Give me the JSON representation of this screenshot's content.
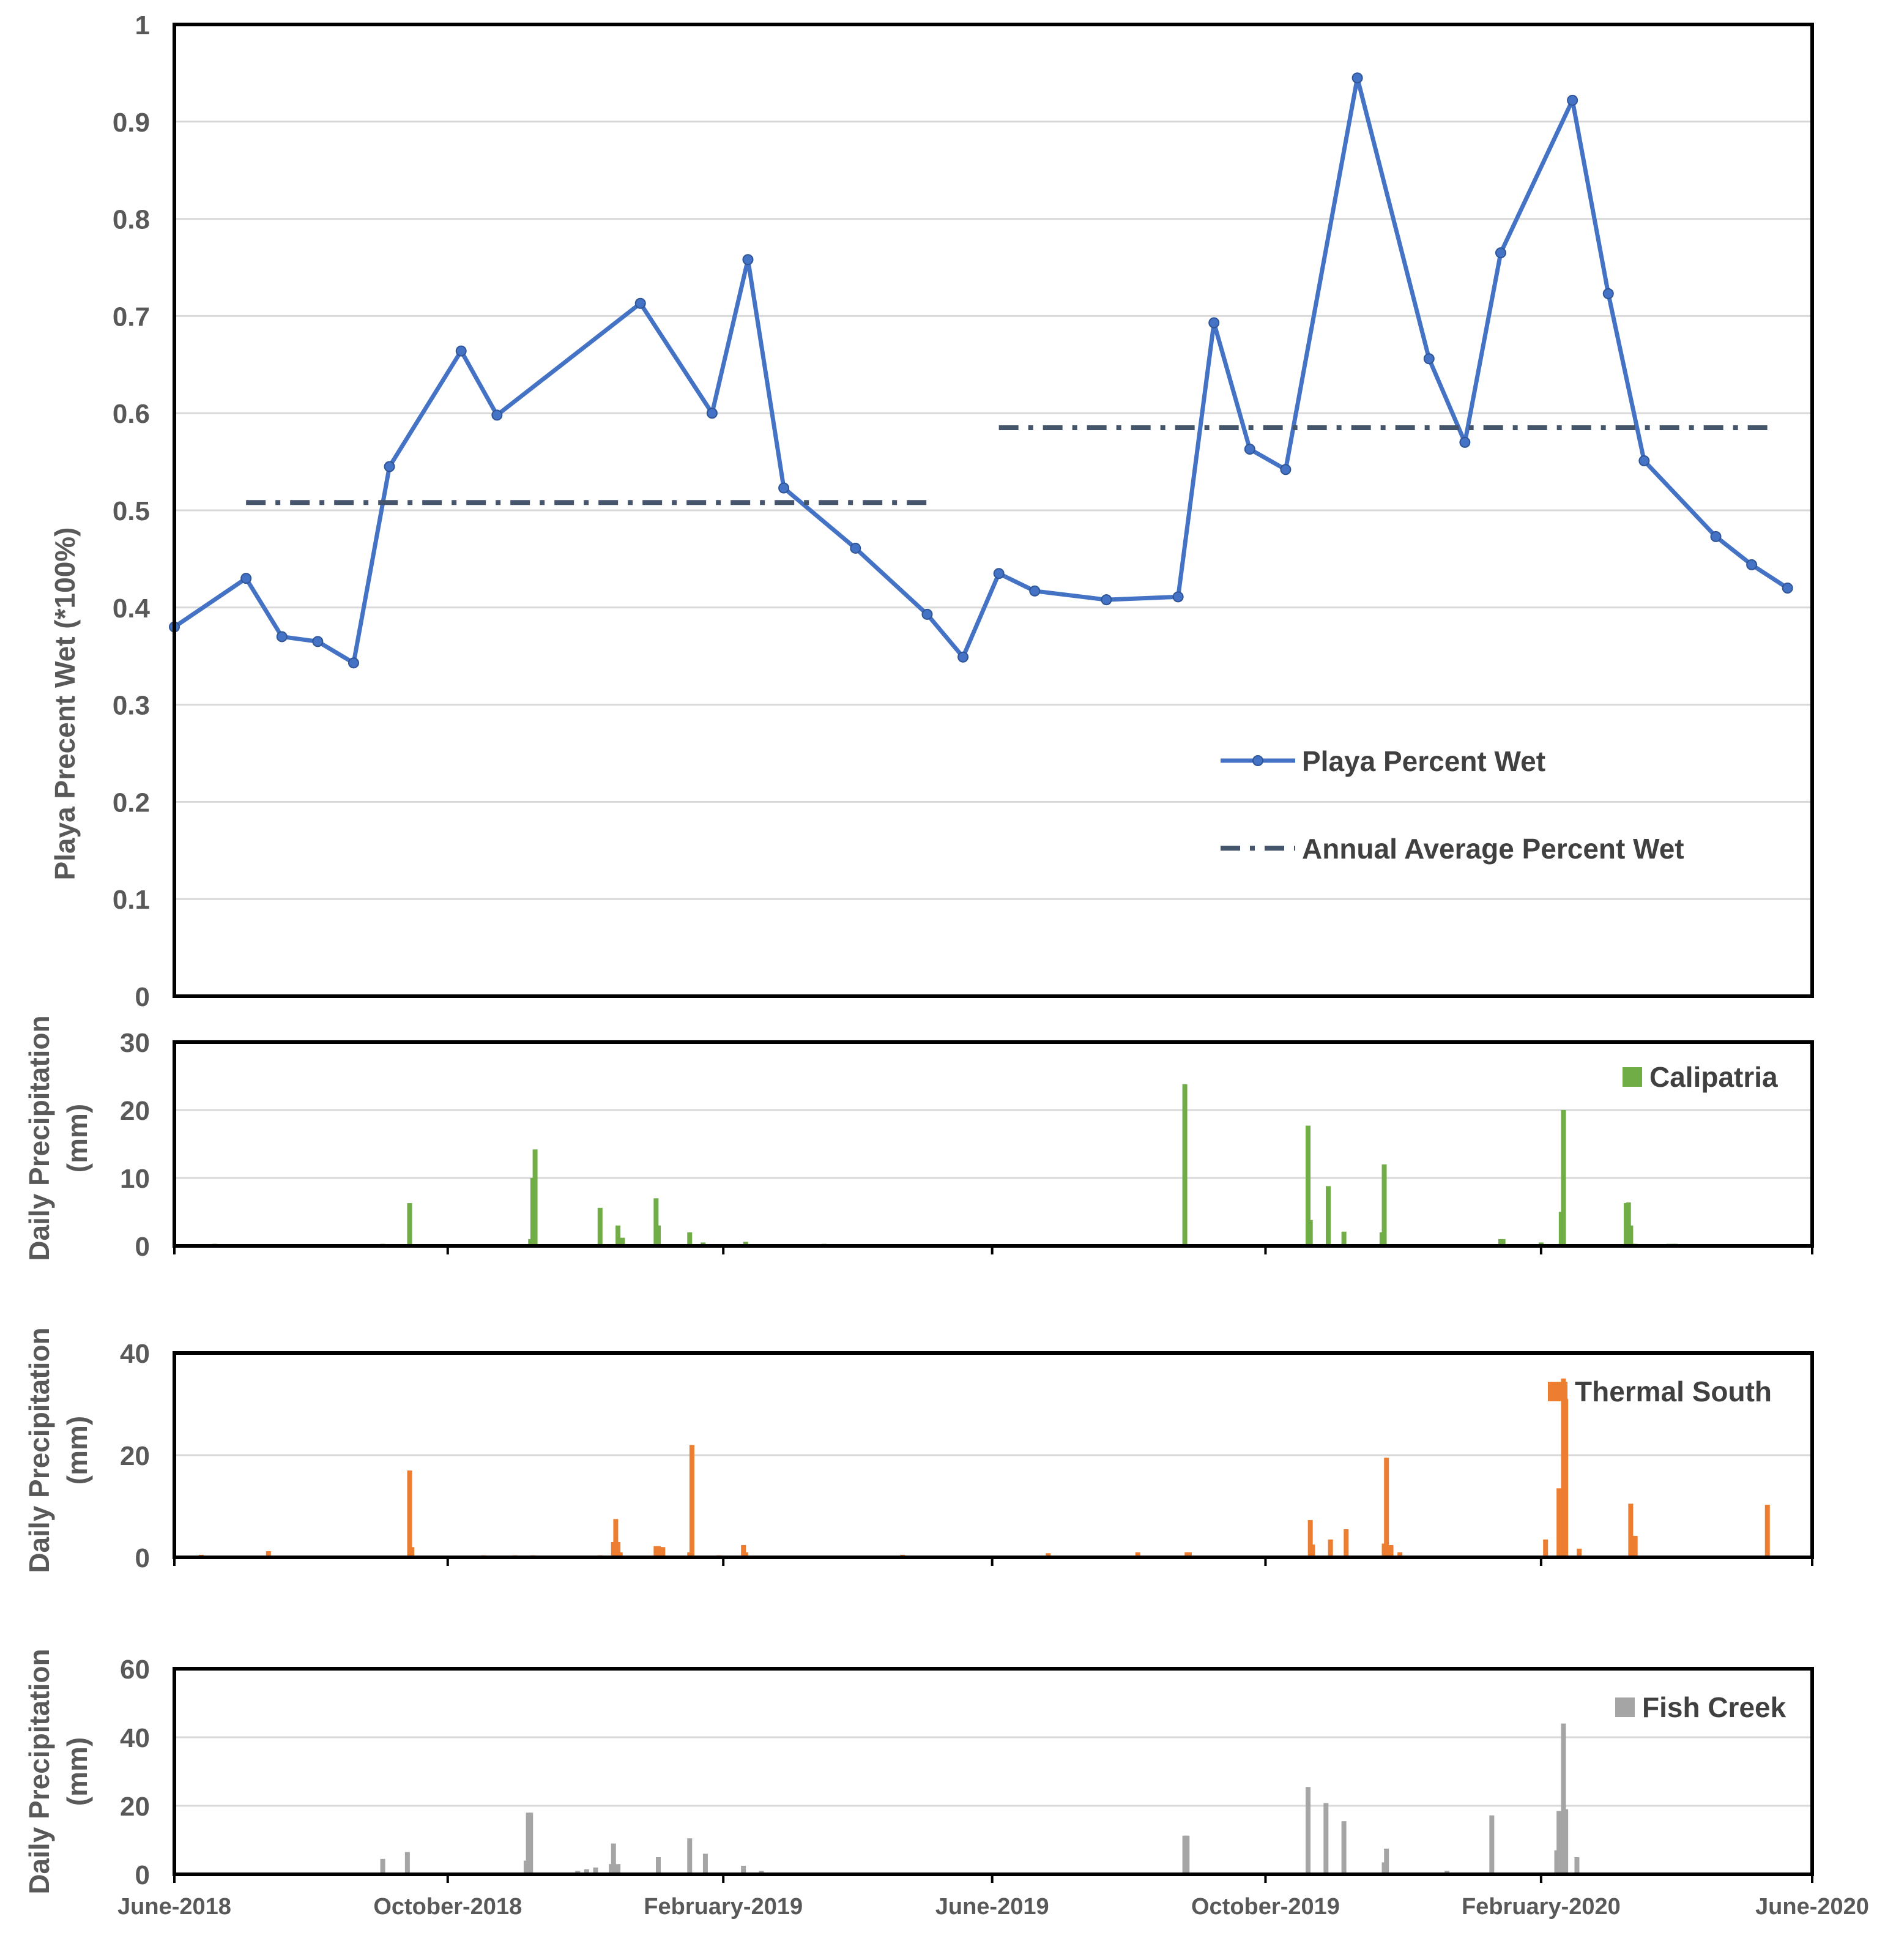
{
  "chart_data": [
    {
      "id": "wet",
      "type": "line",
      "ylabel": "Playa Precent Wet (*100%)",
      "ylim": [
        0,
        1
      ],
      "yticks": [
        0,
        0.1,
        0.2,
        0.3,
        0.4,
        0.5,
        0.6,
        0.7,
        0.8,
        0.9,
        1
      ],
      "ytick_labels": [
        "0",
        "0.1",
        "0.2",
        "0.3",
        "0.4",
        "0.5",
        "0.6",
        "0.7",
        "0.8",
        "0.9",
        "1"
      ],
      "x_unit": "days since June 1, 2018",
      "xlim": [
        0,
        731
      ],
      "grid": true,
      "legend_position": "lower-right",
      "series": [
        {
          "name": "Playa Percent Wet",
          "color": "#4472C4",
          "marker": "circle",
          "x": [
            0,
            32,
            48,
            64,
            80,
            96,
            128,
            144,
            208,
            240,
            256,
            272,
            304,
            336,
            352,
            368,
            384,
            416,
            448,
            464,
            480,
            496,
            528,
            560,
            576,
            592,
            624,
            640,
            656,
            688,
            704,
            720
          ],
          "y": [
            0.38,
            0.43,
            0.37,
            0.365,
            0.343,
            0.545,
            0.664,
            0.598,
            0.713,
            0.6,
            0.758,
            0.523,
            0.461,
            0.393,
            0.349,
            0.435,
            0.417,
            0.408,
            0.411,
            0.693,
            0.563,
            0.542,
            0.945,
            0.656,
            0.57,
            0.765,
            0.922,
            0.723,
            0.551,
            0.473,
            0.444,
            0.42
          ]
        },
        {
          "name": "Annual Average Percent Wet",
          "color": "#44546A",
          "style": "dash-dot",
          "segments": [
            {
              "x": [
                32,
                340
              ],
              "y": 0.508
            },
            {
              "x": [
                368,
                713
              ],
              "y": 0.585
            }
          ]
        }
      ]
    },
    {
      "id": "calipatria",
      "type": "bar",
      "ylabel": [
        "Daily Precipitation",
        "(mm)"
      ],
      "ylim": [
        0,
        30
      ],
      "yticks": [
        0,
        10,
        20,
        30
      ],
      "ytick_labels": [
        "0",
        "10",
        "20",
        "30"
      ],
      "xlim": [
        0,
        731
      ],
      "grid": true,
      "legend_position": "top-right",
      "series": [
        {
          "name": "Calipatria",
          "color": "#70AD47",
          "x": [
            18,
            93,
            105,
            159,
            160,
            161,
            190,
            198,
            200,
            215,
            216,
            230,
            236,
            255,
            290,
            451,
            506,
            507,
            515,
            522,
            539,
            540,
            592,
            593,
            610,
            619,
            620,
            648,
            649,
            650,
            651,
            652,
            651,
            667,
            669,
            670
          ],
          "y": [
            0.3,
            0.3,
            6.3,
            1.0,
            10.0,
            14.2,
            5.6,
            3.0,
            1.2,
            7.0,
            3.0,
            2.0,
            0.5,
            0.6,
            0.3,
            23.8,
            17.7,
            3.8,
            8.8,
            2.1,
            2.0,
            12.0,
            1.0,
            1.0,
            0.5,
            5.0,
            20.0,
            6.3,
            6.4,
            3.0,
            0.3,
            0.3,
            0.3,
            0.3,
            0.3,
            0.3
          ]
        }
      ]
    },
    {
      "id": "thermal",
      "type": "bar",
      "ylabel": [
        "Daily Precipitation",
        "(mm)"
      ],
      "ylim": [
        0,
        40
      ],
      "yticks": [
        0,
        20,
        40
      ],
      "ytick_labels": [
        "0",
        "20",
        "40"
      ],
      "xlim": [
        0,
        731
      ],
      "grid": true,
      "legend_position": "top-right",
      "series": [
        {
          "name": "Thermal South",
          "color": "#ED7D31",
          "x": [
            12,
            42,
            105,
            106,
            138,
            152,
            160,
            190,
            196,
            197,
            198,
            199,
            215,
            216,
            217,
            218,
            230,
            231,
            243,
            254,
            255,
            256,
            325,
            390,
            430,
            452,
            453,
            507,
            508,
            516,
            523,
            540,
            541,
            543,
            547,
            612,
            618,
            620,
            621,
            627,
            650,
            651,
            652,
            711
          ],
          "y": [
            0.5,
            1.2,
            17.0,
            2.0,
            0.4,
            0.4,
            0.4,
            0.4,
            3.0,
            7.5,
            3.0,
            1.0,
            2.2,
            2.2,
            2.0,
            2.0,
            1.0,
            22.0,
            0.4,
            2.4,
            1.0,
            0.3,
            0.5,
            0.8,
            1.0,
            1.0,
            1.0,
            7.3,
            2.5,
            3.5,
            5.5,
            2.7,
            19.5,
            2.4,
            1.0,
            3.5,
            13.5,
            35.0,
            31.0,
            1.7,
            10.5,
            4.2,
            4.2,
            10.3
          ]
        }
      ]
    },
    {
      "id": "fish",
      "type": "bar",
      "ylabel": [
        "Daily Precipitation",
        "(mm)"
      ],
      "ylim": [
        0,
        60
      ],
      "yticks": [
        0,
        20,
        40,
        60
      ],
      "ytick_labels": [
        "0",
        "20",
        "40",
        "60"
      ],
      "xlim": [
        0,
        731
      ],
      "grid": true,
      "legend_position": "top-right",
      "series": [
        {
          "name": "Fish Creek",
          "color": "#A5A5A5",
          "x": [
            10,
            93,
            104,
            157,
            158,
            159,
            180,
            184,
            188,
            195,
            196,
            198,
            216,
            230,
            237,
            254,
            262,
            386,
            451,
            452,
            506,
            514,
            522,
            540,
            541,
            568,
            588,
            617,
            618,
            620,
            621,
            626
          ],
          "y": [
            0.5,
            4.5,
            6.5,
            4.0,
            18.0,
            18.0,
            1.0,
            1.5,
            2.0,
            3.0,
            9.0,
            3.0,
            5.0,
            10.5,
            6.0,
            2.5,
            1.0,
            0.5,
            11.3,
            11.3,
            25.5,
            20.8,
            15.5,
            3.5,
            7.5,
            1.0,
            17.2,
            7.0,
            18.5,
            44.0,
            19.0,
            5.0
          ]
        }
      ]
    }
  ],
  "x_axis": {
    "tick_days": [
      0,
      122,
      245,
      365,
      487,
      610,
      731
    ],
    "tick_labels": [
      "June-2018",
      "October-2018",
      "February-2019",
      "June-2019",
      "October-2019",
      "February-2020",
      "June-2020"
    ]
  }
}
